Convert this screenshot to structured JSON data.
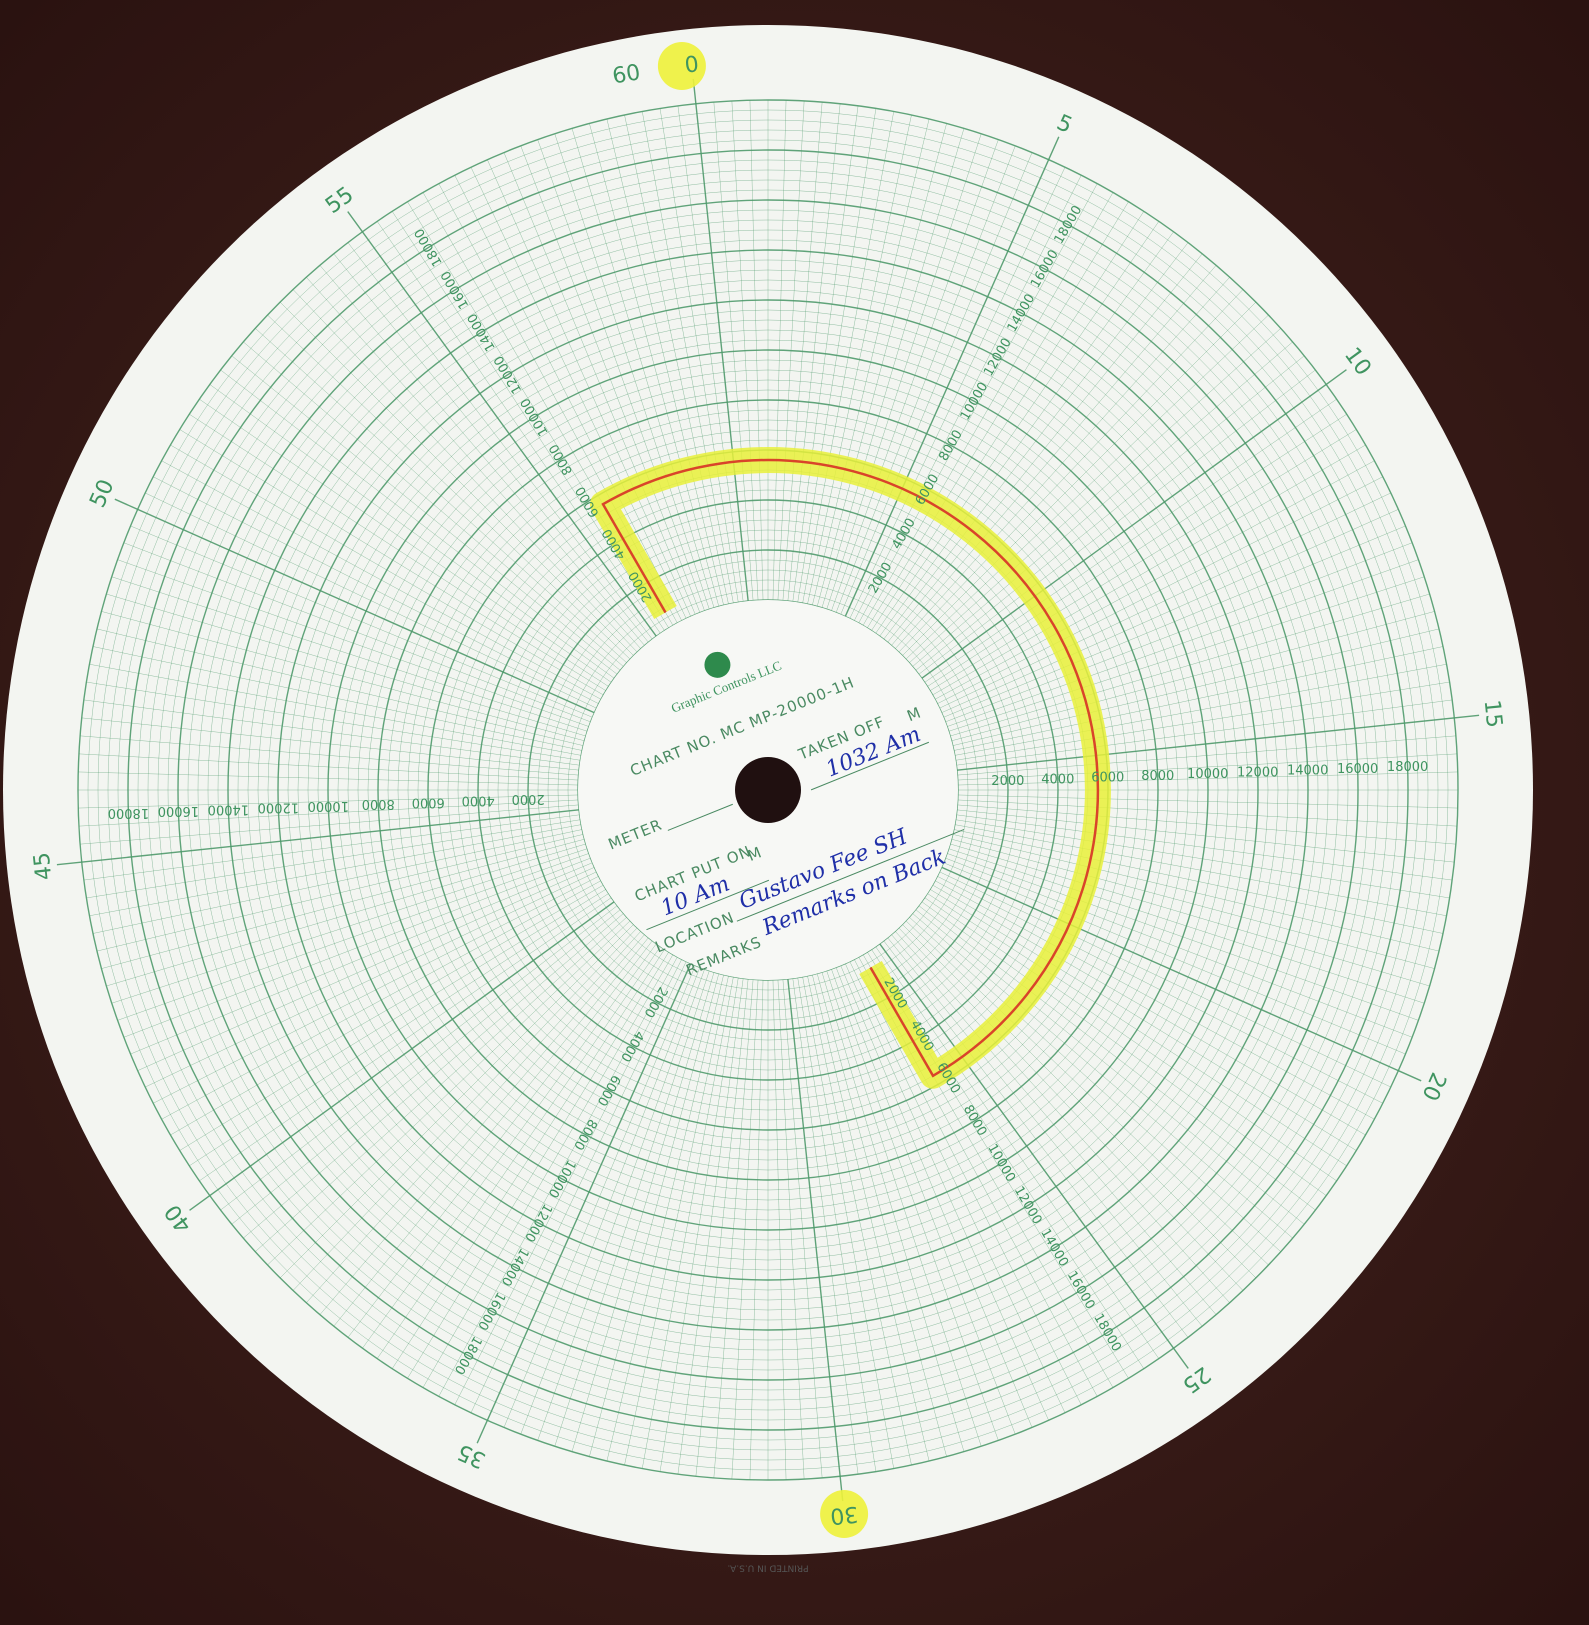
{
  "minute_labels": [
    "0",
    "5",
    "10",
    "15",
    "20",
    "25",
    "30",
    "35",
    "40",
    "45",
    "50",
    "55"
  ],
  "minute_label_end": "60",
  "scale_labels": [
    "2000",
    "4000",
    "6000",
    "8000",
    "10000",
    "12000",
    "14000",
    "16000",
    "18000"
  ],
  "card": {
    "logo": "Graphic Controls LLC",
    "chart_no": "CHART NO. MC MP-20000-1H",
    "meter": "METER",
    "taken_off": "TAKEN OFF",
    "taken_off_unit": "M",
    "taken_off_value": "1032 Am",
    "put_on": "CHART PUT ON",
    "put_on_unit": "M",
    "put_on_value": "10 Am",
    "location": "LOCATION",
    "location_value": "Gustavo Fee SH",
    "remarks": "REMARKS",
    "remarks_value": "Remarks on Back"
  },
  "footer": "PRINTED IN U.S.A."
}
